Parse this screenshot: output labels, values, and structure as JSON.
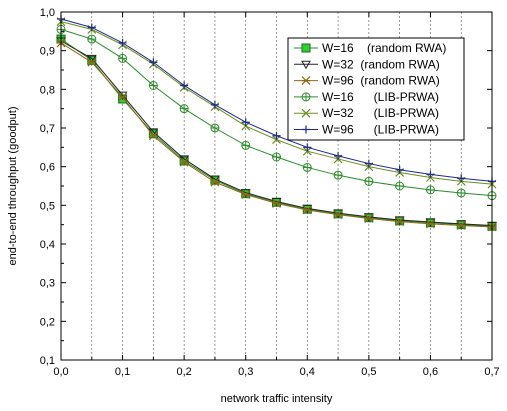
{
  "chart_data": {
    "type": "line",
    "title": "",
    "xlabel": "network traffic intensity",
    "ylabel": "end-to-end throughput (goodput)",
    "xlim": [
      0.0,
      0.7
    ],
    "ylim": [
      0.1,
      1.0
    ],
    "x_ticks": [
      "0,0",
      "0,1",
      "0,2",
      "0,3",
      "0,4",
      "0,5",
      "0,6",
      "0,7"
    ],
    "y_ticks": [
      "0,1",
      "0,2",
      "0,3",
      "0,4",
      "0,5",
      "0,6",
      "0,7",
      "0,8",
      "0,9",
      "1,0"
    ],
    "grid": "vertical dashed",
    "legend_position": "top-right",
    "x": [
      0.0,
      0.05,
      0.1,
      0.15,
      0.2,
      0.25,
      0.3,
      0.35,
      0.4,
      0.45,
      0.5,
      0.55,
      0.6,
      0.65,
      0.7
    ],
    "series": [
      {
        "name": "W=16    (random RWA)",
        "color": "#2e8b2e",
        "marker": "square-filled",
        "values": [
          0.93,
          0.875,
          0.775,
          0.685,
          0.615,
          0.565,
          0.53,
          0.508,
          0.49,
          0.478,
          0.468,
          0.46,
          0.455,
          0.45,
          0.446
        ]
      },
      {
        "name": "W=32  (random RWA)",
        "color": "#222222",
        "marker": "triangle-down-open",
        "values": [
          0.925,
          0.88,
          0.785,
          0.69,
          0.62,
          0.568,
          0.533,
          0.51,
          0.492,
          0.48,
          0.47,
          0.462,
          0.457,
          0.452,
          0.448
        ]
      },
      {
        "name": "W=96  (random RWA)",
        "color": "#8b6914",
        "marker": "x-star",
        "values": [
          0.92,
          0.87,
          0.78,
          0.68,
          0.612,
          0.56,
          0.528,
          0.505,
          0.488,
          0.476,
          0.466,
          0.458,
          0.452,
          0.448,
          0.444
        ]
      },
      {
        "name": "W=16      (LIB-PRWA)",
        "color": "#2e8b2e",
        "marker": "circle-cross",
        "values": [
          0.955,
          0.93,
          0.88,
          0.81,
          0.75,
          0.7,
          0.655,
          0.625,
          0.598,
          0.578,
          0.562,
          0.55,
          0.54,
          0.532,
          0.525
        ]
      },
      {
        "name": "W=32      (LIB-PRWA)",
        "color": "#6b8e23",
        "marker": "x",
        "values": [
          0.975,
          0.955,
          0.915,
          0.865,
          0.805,
          0.755,
          0.705,
          0.67,
          0.64,
          0.62,
          0.6,
          0.585,
          0.572,
          0.562,
          0.555
        ]
      },
      {
        "name": "W=96      (LIB-PRWA)",
        "color": "#1f2a8a",
        "marker": "plus",
        "values": [
          0.982,
          0.96,
          0.92,
          0.87,
          0.81,
          0.76,
          0.715,
          0.68,
          0.65,
          0.628,
          0.608,
          0.592,
          0.58,
          0.57,
          0.562
        ]
      }
    ]
  }
}
